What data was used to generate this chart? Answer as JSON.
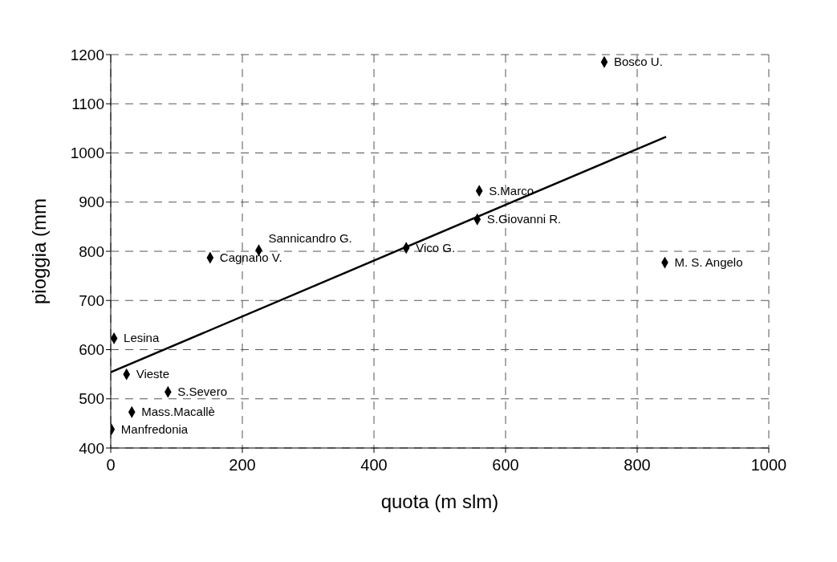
{
  "chart_data": {
    "type": "scatter",
    "xlabel": "quota (m slm)",
    "ylabel": "pioggia (mm",
    "xlim": [
      0,
      1000
    ],
    "xticks": [
      0,
      200,
      400,
      600,
      800,
      1000
    ],
    "ylim": [
      400,
      1200
    ],
    "yticks": [
      400,
      500,
      600,
      700,
      800,
      900,
      1000,
      1100,
      1200
    ],
    "grid": true,
    "series": [
      {
        "color": "#000000",
        "marker": "diamond",
        "x": [
          750,
          560,
          557,
          449,
          225,
          151,
          842,
          5,
          24,
          87,
          32,
          1
        ],
        "values": [
          1185,
          923,
          865,
          807,
          802,
          787,
          777,
          623,
          550,
          514,
          473,
          438
        ]
      },
      {
        "type": "line",
        "color": "#000000",
        "line_style": "solid",
        "marker": "none",
        "x": [
          0,
          844
        ],
        "values": [
          554,
          1033
        ]
      }
    ],
    "annotations": [
      {
        "text": "Bosco U.",
        "x": 750,
        "y": 1185
      },
      {
        "text": "S.Marco",
        "x": 560,
        "y": 923
      },
      {
        "text": "S.Giovanni R.",
        "x": 557,
        "y": 865
      },
      {
        "text": "Vico G.",
        "x": 449,
        "y": 807
      },
      {
        "text": "Sannicandro G.",
        "x": 225,
        "y": 802
      },
      {
        "text": "Cagnano V.",
        "x": 151,
        "y": 787
      },
      {
        "text": "M. S. Angelo",
        "x": 842,
        "y": 777
      },
      {
        "text": "Lesina",
        "x": 5,
        "y": 623
      },
      {
        "text": "Vieste",
        "x": 24,
        "y": 550
      },
      {
        "text": "S.Severo",
        "x": 87,
        "y": 514
      },
      {
        "text": "Mass.Macallè",
        "x": 32,
        "y": 473
      },
      {
        "text": "Manfredonia",
        "x": 1,
        "y": 438
      }
    ]
  }
}
